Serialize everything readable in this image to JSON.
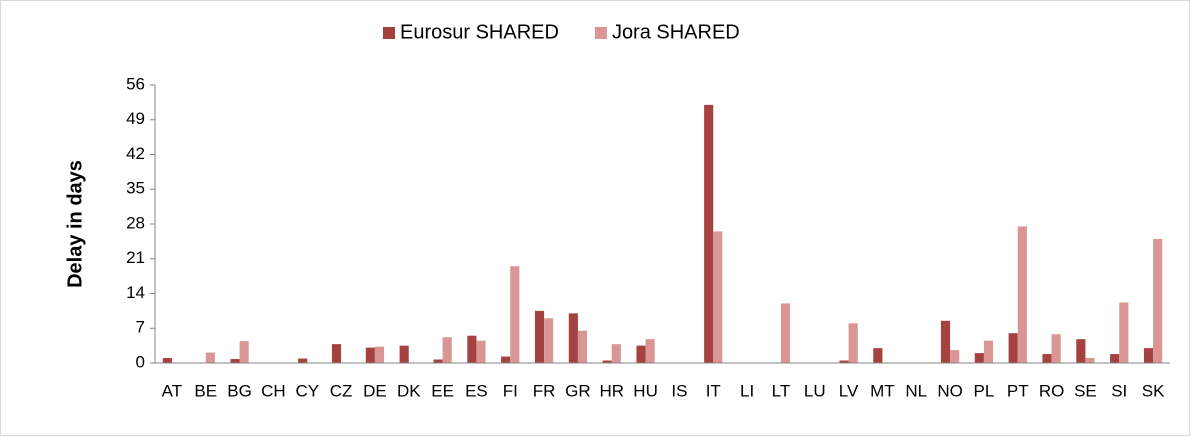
{
  "chart_data": {
    "type": "bar",
    "y_label": "Delay in days",
    "categories": [
      "AT",
      "BE",
      "BG",
      "CH",
      "CY",
      "CZ",
      "DE",
      "DK",
      "EE",
      "ES",
      "FI",
      "FR",
      "GR",
      "HR",
      "HU",
      "IS",
      "IT",
      "LI",
      "LT",
      "LU",
      "LV",
      "MT",
      "NL",
      "NO",
      "PL",
      "PT",
      "RO",
      "SE",
      "SI",
      "SK"
    ],
    "series": [
      {
        "name": "Eurosur SHARED",
        "color": "#a5423f",
        "values": [
          1.0,
          0,
          0.8,
          0,
          0.9,
          3.8,
          3.1,
          3.5,
          0.7,
          5.5,
          1.3,
          10.5,
          10.0,
          0.5,
          3.5,
          0,
          52,
          0,
          0,
          0,
          0.5,
          3.0,
          0,
          8.5,
          2.0,
          6.0,
          1.8,
          4.8,
          1.8,
          3.0
        ]
      },
      {
        "name": "Jora SHARED",
        "color": "#d99694",
        "values": [
          0,
          2.1,
          4.4,
          0,
          0,
          0,
          3.3,
          0,
          5.2,
          4.5,
          19.5,
          9.0,
          6.5,
          3.8,
          4.8,
          0,
          26.5,
          0,
          12.0,
          0,
          8.0,
          0,
          0,
          2.6,
          4.5,
          27.5,
          5.8,
          1.0,
          12.2,
          25.0
        ]
      }
    ],
    "ylim": [
      0,
      56
    ],
    "yticks": [
      0,
      7,
      14,
      21,
      28,
      35,
      42,
      49,
      56
    ],
    "grid": false,
    "legend": "top"
  }
}
